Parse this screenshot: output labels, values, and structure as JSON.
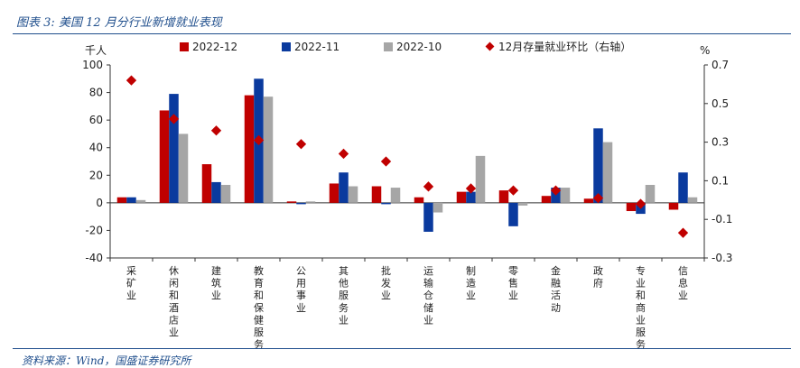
{
  "figure": {
    "label": "图表 3:",
    "title": "美国 12 月分行业新增就业表现",
    "source": "资料来源：Wind，国盛证券研究所"
  },
  "chart_data": {
    "type": "bar",
    "categories": [
      "采矿业",
      "休闲和酒店业",
      "建筑业",
      "教育和保健服务",
      "公用事业",
      "其他服务业",
      "批发业",
      "运输仓储业",
      "制造业",
      "零售业",
      "金融活动",
      "政府",
      "专业和商业服务",
      "信息业"
    ],
    "series": [
      {
        "name": "2022-12",
        "type": "bar",
        "axis": "left",
        "color": "#c00000",
        "values": [
          4,
          67,
          28,
          78,
          1,
          14,
          12,
          4,
          8,
          9,
          5,
          3,
          -6,
          -5
        ]
      },
      {
        "name": "2022-11",
        "type": "bar",
        "axis": "left",
        "color": "#0a3a9e",
        "values": [
          4,
          79,
          15,
          90,
          -1,
          22,
          -1,
          -21,
          8,
          -17,
          11,
          54,
          -8,
          22
        ]
      },
      {
        "name": "2022-10",
        "type": "bar",
        "axis": "left",
        "color": "#a6a6a6",
        "values": [
          2,
          50,
          13,
          77,
          1,
          12,
          11,
          -7,
          34,
          -2,
          11,
          44,
          13,
          4
        ]
      },
      {
        "name": "12月存量就业环比（右轴）",
        "type": "scatter",
        "axis": "right",
        "color": "#c00000",
        "values": [
          0.62,
          0.42,
          0.36,
          0.31,
          0.29,
          0.24,
          0.2,
          0.07,
          0.06,
          0.05,
          0.05,
          0.01,
          -0.02,
          -0.17
        ]
      }
    ],
    "ylabel": "千人",
    "y2label": "%",
    "ylim": [
      -40,
      100
    ],
    "yticks": [
      -40,
      -20,
      0,
      20,
      40,
      60,
      80,
      100
    ],
    "y2lim": [
      -0.3,
      0.7
    ],
    "y2ticks": [
      -0.3,
      -0.1,
      0.1,
      0.3,
      0.5,
      0.7
    ],
    "legend_position": "top",
    "grid": false
  }
}
